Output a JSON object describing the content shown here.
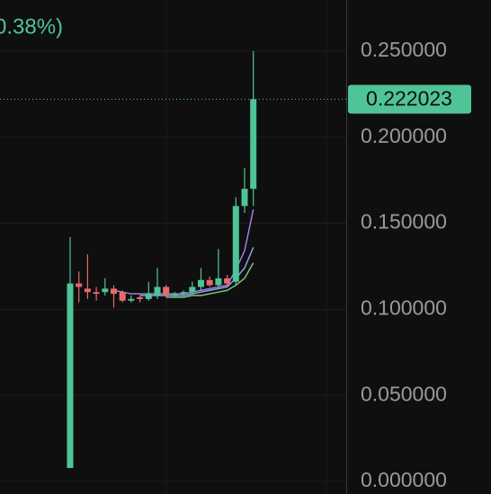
{
  "chart_data": {
    "type": "candlestick",
    "header_text": "0.38%)",
    "categories": [
      null,
      null,
      null,
      null,
      null,
      null,
      null,
      null,
      null,
      null,
      null,
      null,
      null,
      null,
      null,
      null,
      null,
      null,
      null,
      null,
      null,
      null
    ],
    "open": [
      0.0078,
      0.115,
      0.112,
      0.11,
      0.11,
      0.112,
      0.11,
      0.105,
      0.107,
      0.106,
      0.108,
      0.113,
      0.108,
      0.109,
      0.11,
      0.113,
      0.117,
      0.114,
      0.118,
      0.116,
      0.16,
      0.17
    ],
    "high": [
      0.142,
      0.122,
      0.132,
      0.113,
      0.118,
      0.114,
      0.111,
      0.108,
      0.108,
      0.116,
      0.124,
      0.114,
      0.11,
      0.111,
      0.116,
      0.124,
      0.119,
      0.135,
      0.12,
      0.165,
      0.182,
      0.25
    ],
    "low": [
      0.0078,
      0.104,
      0.106,
      0.105,
      0.108,
      0.101,
      0.104,
      0.104,
      0.104,
      0.105,
      0.106,
      0.107,
      0.107,
      0.108,
      0.109,
      0.111,
      0.113,
      0.112,
      0.113,
      0.114,
      0.156,
      0.16
    ],
    "close": [
      0.115,
      0.113,
      0.11,
      0.109,
      0.112,
      0.109,
      0.105,
      0.106,
      0.106,
      0.109,
      0.113,
      0.108,
      0.109,
      0.11,
      0.113,
      0.117,
      0.114,
      0.118,
      0.115,
      0.16,
      0.17,
      0.222023
    ],
    "up_color": "#4fc497",
    "down_color": "#e8696b",
    "series": [
      {
        "color": "#9d7fe0",
        "values": [
          null,
          null,
          null,
          null,
          null,
          0.111,
          0.11,
          0.109,
          0.109,
          0.109,
          0.109,
          0.109,
          0.109,
          0.109,
          0.11,
          0.111,
          0.112,
          0.113,
          0.114,
          0.123,
          0.134,
          0.158
        ]
      },
      {
        "color": "#8fa3e6",
        "values": [
          null,
          null,
          null,
          null,
          null,
          null,
          null,
          null,
          0.108,
          0.108,
          0.108,
          0.108,
          0.108,
          0.108,
          0.109,
          0.11,
          0.111,
          0.112,
          0.113,
          0.118,
          0.124,
          0.136
        ]
      },
      {
        "color": "#7cc47c",
        "values": [
          null,
          null,
          null,
          null,
          null,
          null,
          null,
          null,
          null,
          null,
          null,
          0.107,
          0.107,
          0.107,
          0.108,
          0.108,
          0.109,
          0.11,
          0.111,
          0.114,
          0.118,
          0.127
        ]
      }
    ],
    "last_price": 0.222023,
    "ylim": [
      0,
      0.2796875
    ],
    "yticks": [
      {
        "value": 0,
        "label": "0.000000"
      },
      {
        "value": 0.05,
        "label": "0.050000"
      },
      {
        "value": 0.1,
        "label": "0.100000"
      },
      {
        "value": 0.15,
        "label": "0.150000"
      },
      {
        "value": 0.2,
        "label": "0.200000"
      },
      {
        "value": 0.25,
        "label": "0.250000"
      }
    ],
    "grid": true
  }
}
